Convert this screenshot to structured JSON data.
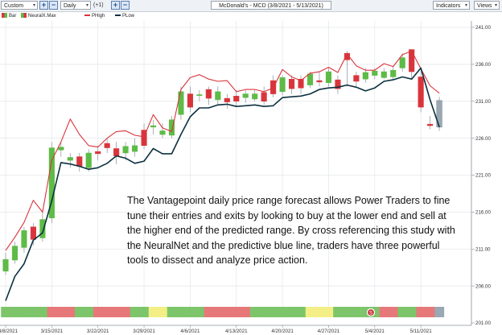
{
  "toolbar": {
    "preset": "Custom",
    "interval": "Daily",
    "offset": "(+1)",
    "title": "McDonald's - MCD (3/8/2021 - 5/13/2021)",
    "indicators": "Indicators",
    "views": "Views"
  },
  "legend": {
    "bar": "Bar",
    "neural": "NeuralX.Max",
    "phigh": "PHigh",
    "plow": "PLow"
  },
  "colors": {
    "up": "#5dbb46",
    "down": "#d9343b",
    "phigh": "#d9343b",
    "plow": "#0c3140",
    "bg": "#ffffff",
    "grid": "#e3e6ea",
    "strip_green": "#7dc56a",
    "strip_red": "#e6787a",
    "strip_yellow": "#f3ef86",
    "last_candle": "#9aa8b4",
    "annotation_icon": "#c9333b"
  },
  "annotation": "The Vantagepoint daily price range forecast allows Power Traders to fine tune their entries and exits by looking to buy at the lower end and sell at the higher end of the predicted range.  By cross referencing this study with the NeuralNet and the predictive blue line, traders have three powerful tools to dissect and analyze price action.",
  "chart_data": {
    "type": "candlestick",
    "title": "McDonald's - MCD (3/8/2021 - 5/13/2021)",
    "x_tick_labels": [
      "3/8/2021",
      "3/15/2021",
      "3/22/2021",
      "3/29/2021",
      "4/6/2021",
      "4/13/2021",
      "4/20/2021",
      "4/27/2021",
      "5/4/2021",
      "5/11/2021"
    ],
    "y_tick_labels": [
      "241.00",
      "236.00",
      "231.00",
      "226.00",
      "221.00",
      "216.00",
      "211.00",
      "206.00",
      "201.00"
    ],
    "ylim": [
      201,
      241
    ],
    "dates": [
      "3/8",
      "3/9",
      "3/10",
      "3/11",
      "3/12",
      "3/15",
      "3/16",
      "3/17",
      "3/18",
      "3/19",
      "3/22",
      "3/23",
      "3/24",
      "3/25",
      "3/26",
      "3/29",
      "3/30",
      "3/31",
      "4/1",
      "4/5",
      "4/6",
      "4/7",
      "4/8",
      "4/9",
      "4/12",
      "4/13",
      "4/14",
      "4/15",
      "4/16",
      "4/19",
      "4/20",
      "4/21",
      "4/22",
      "4/23",
      "4/26",
      "4/27",
      "4/28",
      "4/29",
      "4/30",
      "5/3",
      "5/4",
      "5/5",
      "5/6",
      "5/7",
      "5/10",
      "5/11",
      "5/12",
      "5/13"
    ],
    "open": [
      208.0,
      209.5,
      211.2,
      214.0,
      212.5,
      215.2,
      224.4,
      223.0,
      223.5,
      222.0,
      224.2,
      225.3,
      224.6,
      224.0,
      224.2,
      227.1,
      227.5,
      226.5,
      226.4,
      229.2,
      232.0,
      231.8,
      232.6,
      231.2,
      231.4,
      231.7,
      231.5,
      231.3,
      232.2,
      233.8,
      232.3,
      234.0,
      234.0,
      233.2,
      233.8,
      233.5,
      233.9,
      237.5,
      234.5,
      234.0,
      234.5,
      234.2,
      234.3,
      235.5,
      238.0,
      234.3,
      227.9,
      227.5
    ],
    "close": [
      209.6,
      211.4,
      213.5,
      212.3,
      215.0,
      224.7,
      224.8,
      223.4,
      222.2,
      224.0,
      223.9,
      224.7,
      223.6,
      224.9,
      225.0,
      225.0,
      227.7,
      227.0,
      228.5,
      232.3,
      230.2,
      231.9,
      231.4,
      232.3,
      230.9,
      231.0,
      232.0,
      232.0,
      231.0,
      232.0,
      234.2,
      232.7,
      232.8,
      234.7,
      233.6,
      235.0,
      232.7,
      236.6,
      233.7,
      234.9,
      235.1,
      235.0,
      235.2,
      236.9,
      235.0,
      230.2,
      227.7,
      231.1
    ],
    "high": [
      210.5,
      212.0,
      214.0,
      214.5,
      216.0,
      225.5,
      225.5,
      224.0,
      224.0,
      224.5,
      225.0,
      226.0,
      225.5,
      225.5,
      226.0,
      228.0,
      228.5,
      228.0,
      229.0,
      233.0,
      233.0,
      232.5,
      233.0,
      233.0,
      232.0,
      232.5,
      232.5,
      232.5,
      233.0,
      234.5,
      234.5,
      234.5,
      234.5,
      235.0,
      235.0,
      235.5,
      234.5,
      237.8,
      235.0,
      235.5,
      235.5,
      235.5,
      235.8,
      237.5,
      238.0,
      235.0,
      229.0,
      231.6
    ],
    "low": [
      207.5,
      209.0,
      210.5,
      211.5,
      212.0,
      214.5,
      223.5,
      222.0,
      221.5,
      221.5,
      223.0,
      224.0,
      222.5,
      223.0,
      223.5,
      224.5,
      226.5,
      226.0,
      226.0,
      228.5,
      229.5,
      231.0,
      230.5,
      230.5,
      230.0,
      230.2,
      230.8,
      231.0,
      230.5,
      231.5,
      231.8,
      232.0,
      232.0,
      232.8,
      233.0,
      233.0,
      232.0,
      233.0,
      233.0,
      233.5,
      234.0,
      234.0,
      234.0,
      235.0,
      234.0,
      229.5,
      227.2,
      227.0
    ],
    "series": [
      {
        "name": "PHigh",
        "values": [
          210.8,
          212.6,
          214.6,
          217.6,
          216.0,
          223.0,
          225.5,
          228.6,
          226.5,
          225.0,
          224.8,
          226.0,
          226.9,
          227.0,
          226.4,
          226.2,
          229.2,
          227.4,
          226.9,
          232.6,
          234.2,
          234.6,
          234.0,
          233.7,
          233.8,
          232.3,
          232.6,
          232.6,
          232.3,
          232.8,
          235.3,
          234.3,
          233.8,
          234.8,
          235.0,
          235.6,
          234.9,
          237.4,
          235.8,
          235.2,
          235.2,
          236.1,
          235.7,
          237.3,
          237.8,
          235.4,
          233.1,
          232.1
        ]
      },
      {
        "name": "PLow",
        "values": [
          204.0,
          207.3,
          209.0,
          212.2,
          213.2,
          217.5,
          222.7,
          222.5,
          222.2,
          221.8,
          222.0,
          222.6,
          223.6,
          223.3,
          222.6,
          222.9,
          224.6,
          223.9,
          223.9,
          226.5,
          228.9,
          230.1,
          230.1,
          230.5,
          230.6,
          230.3,
          230.4,
          230.5,
          230.3,
          230.4,
          231.5,
          231.6,
          231.7,
          232.0,
          232.6,
          232.8,
          232.9,
          233.2,
          232.9,
          232.4,
          232.8,
          233.7,
          233.9,
          234.3,
          234.0,
          235.5,
          231.2,
          227.5
        ]
      }
    ],
    "forecast_strip": [
      "green",
      "green",
      "green",
      "green",
      "green",
      "red",
      "red",
      "red",
      "green",
      "green",
      "red",
      "red",
      "red",
      "red",
      "green",
      "green",
      "yellow",
      "yellow",
      "green",
      "green",
      "green",
      "green",
      "red",
      "red",
      "red",
      "red",
      "red",
      "green",
      "green",
      "green",
      "green",
      "green",
      "green",
      "yellow",
      "yellow",
      "yellow",
      "green",
      "green",
      "green",
      "green",
      "green",
      "red",
      "red",
      "green",
      "green",
      "red",
      "red",
      "gray"
    ]
  }
}
